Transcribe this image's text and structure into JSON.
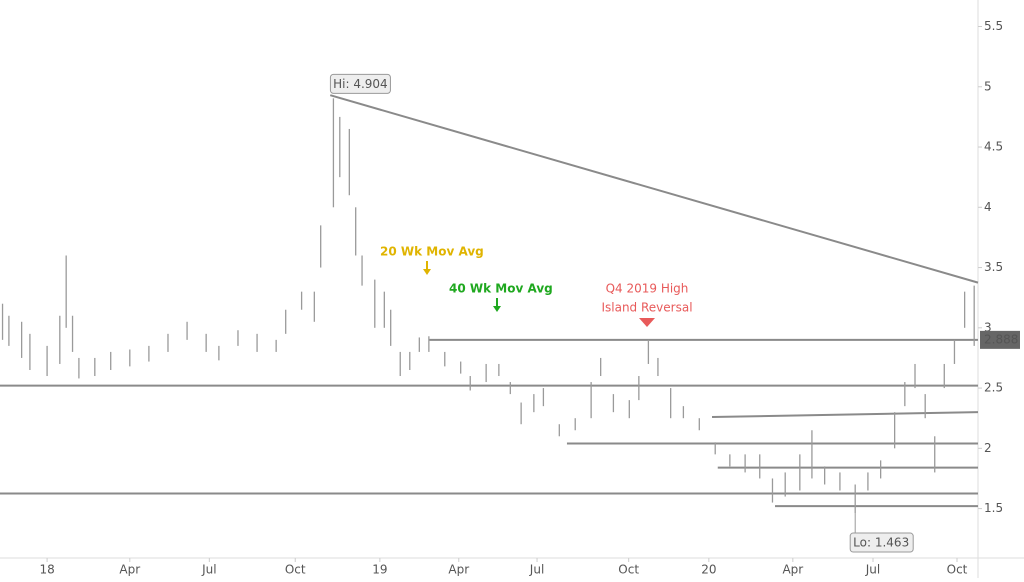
{
  "chart_data": {
    "type": "ohlc",
    "color": "#9a9a9a",
    "line_color": "#8a8a8a",
    "x": [
      -7,
      -6,
      -4,
      -2.7,
      0,
      2,
      3,
      4,
      5,
      7.5,
      10,
      13,
      16,
      19,
      22,
      25,
      27,
      30,
      33,
      36,
      37.5,
      40,
      42,
      43,
      45,
      46,
      47.5,
      48.5,
      49.5,
      51.5,
      53,
      54,
      55.5,
      57,
      58.5,
      60,
      62.5,
      65,
      66.5,
      69,
      71,
      72.8,
      74.5,
      76.5,
      78,
      80.5,
      83,
      85.5,
      87,
      89,
      91.5,
      93,
      94.5,
      96,
      98,
      100,
      102.5,
      105,
      107.3,
      109.7,
      112,
      114,
      116,
      118.3,
      120.2,
      122.2,
      124.6,
      127,
      129,
      131,
      133.2,
      134.8,
      136.4,
      138,
      139.5,
      141,
      142.6,
      144.2,
      145.7
    ],
    "high": [
      3.2,
      3.1,
      3.05,
      2.95,
      2.85,
      3.1,
      3.6,
      3.1,
      2.75,
      2.75,
      2.8,
      2.82,
      2.85,
      2.95,
      3.05,
      2.95,
      2.85,
      2.98,
      2.95,
      2.9,
      3.15,
      3.3,
      3.3,
      3.85,
      4.904,
      4.75,
      4.65,
      4.0,
      3.6,
      3.4,
      3.3,
      3.15,
      2.8,
      2.8,
      2.92,
      2.93,
      2.8,
      2.72,
      2.6,
      2.7,
      2.7,
      2.55,
      2.38,
      2.45,
      2.5,
      2.2,
      2.25,
      2.55,
      2.75,
      2.45,
      2.4,
      2.6,
      2.9,
      2.75,
      2.5,
      2.35,
      2.25,
      2.05,
      1.95,
      1.95,
      1.95,
      1.75,
      1.8,
      1.95,
      2.15,
      1.85,
      1.8,
      1.7,
      1.8,
      1.9,
      2.3,
      2.55,
      2.7,
      2.45,
      2.1,
      2.7,
      2.9,
      3.3,
      3.35
    ],
    "low": [
      2.9,
      2.85,
      2.75,
      2.65,
      2.6,
      2.7,
      3.0,
      2.8,
      2.58,
      2.6,
      2.65,
      2.68,
      2.72,
      2.8,
      2.9,
      2.8,
      2.73,
      2.85,
      2.8,
      2.8,
      2.95,
      3.15,
      3.05,
      3.5,
      4.0,
      4.25,
      4.1,
      3.6,
      3.35,
      3.0,
      3.0,
      2.85,
      2.6,
      2.65,
      2.8,
      2.8,
      2.68,
      2.62,
      2.48,
      2.55,
      2.6,
      2.45,
      2.2,
      2.3,
      2.35,
      2.1,
      2.15,
      2.25,
      2.6,
      2.3,
      2.25,
      2.4,
      2.7,
      2.6,
      2.25,
      2.25,
      2.15,
      1.95,
      1.85,
      1.8,
      1.75,
      1.55,
      1.6,
      1.65,
      1.75,
      1.7,
      1.65,
      1.463,
      1.65,
      1.75,
      2.0,
      2.35,
      2.5,
      2.25,
      1.8,
      2.5,
      2.7,
      3.0,
      2.85
    ],
    "trendlines": [
      {
        "x": [
          44.5,
          146.3
        ],
        "y": [
          4.93,
          3.375
        ]
      },
      {
        "x": [
          -7.4,
          146.3
        ],
        "y": [
          2.52,
          2.52
        ]
      },
      {
        "x": [
          -7.4,
          146.3
        ],
        "y": [
          1.625,
          1.625
        ]
      },
      {
        "x": [
          60,
          146.3
        ],
        "y": [
          2.9,
          2.9
        ]
      },
      {
        "x": [
          104.5,
          146.3
        ],
        "y": [
          2.26,
          2.3
        ]
      },
      {
        "x": [
          81.7,
          146.3
        ],
        "y": [
          2.04,
          2.04
        ]
      },
      {
        "x": [
          105.4,
          146.3
        ],
        "y": [
          1.84,
          1.84
        ]
      },
      {
        "x": [
          114.4,
          146.3
        ],
        "y": [
          1.52,
          1.52
        ]
      }
    ],
    "xlim": [
      -7.4,
      146.3
    ],
    "ylim": [
      1.09,
      5.72
    ],
    "xticks": [
      {
        "value": 0,
        "label": "18"
      },
      {
        "value": 13,
        "label": "Apr"
      },
      {
        "value": 25.5,
        "label": "Jul"
      },
      {
        "value": 39,
        "label": "Oct"
      },
      {
        "value": 52.3,
        "label": "19"
      },
      {
        "value": 64.7,
        "label": "Apr"
      },
      {
        "value": 77,
        "label": "Jul"
      },
      {
        "value": 91.4,
        "label": "Oct"
      },
      {
        "value": 104,
        "label": "20"
      },
      {
        "value": 117.2,
        "label": "Apr"
      },
      {
        "value": 129.8,
        "label": "Jul"
      },
      {
        "value": 143,
        "label": "Oct"
      }
    ],
    "yticks": [
      1.5,
      2,
      2.5,
      3,
      3.5,
      4,
      4.5,
      5,
      5.5
    ],
    "hi_label": "Hi: 4.904",
    "lo_label": "Lo: 1.463",
    "last_label": "2.888",
    "annotations": [
      {
        "text": "20 Wk Mov Avg",
        "color": "#e0b400"
      },
      {
        "text": "40 Wk Mov Avg",
        "color": "#1fa81f"
      },
      {
        "text": "Q4 2019 High",
        "color": "#e85a5a"
      },
      {
        "text": "Island Reversal",
        "color": "#e85a5a"
      }
    ]
  }
}
